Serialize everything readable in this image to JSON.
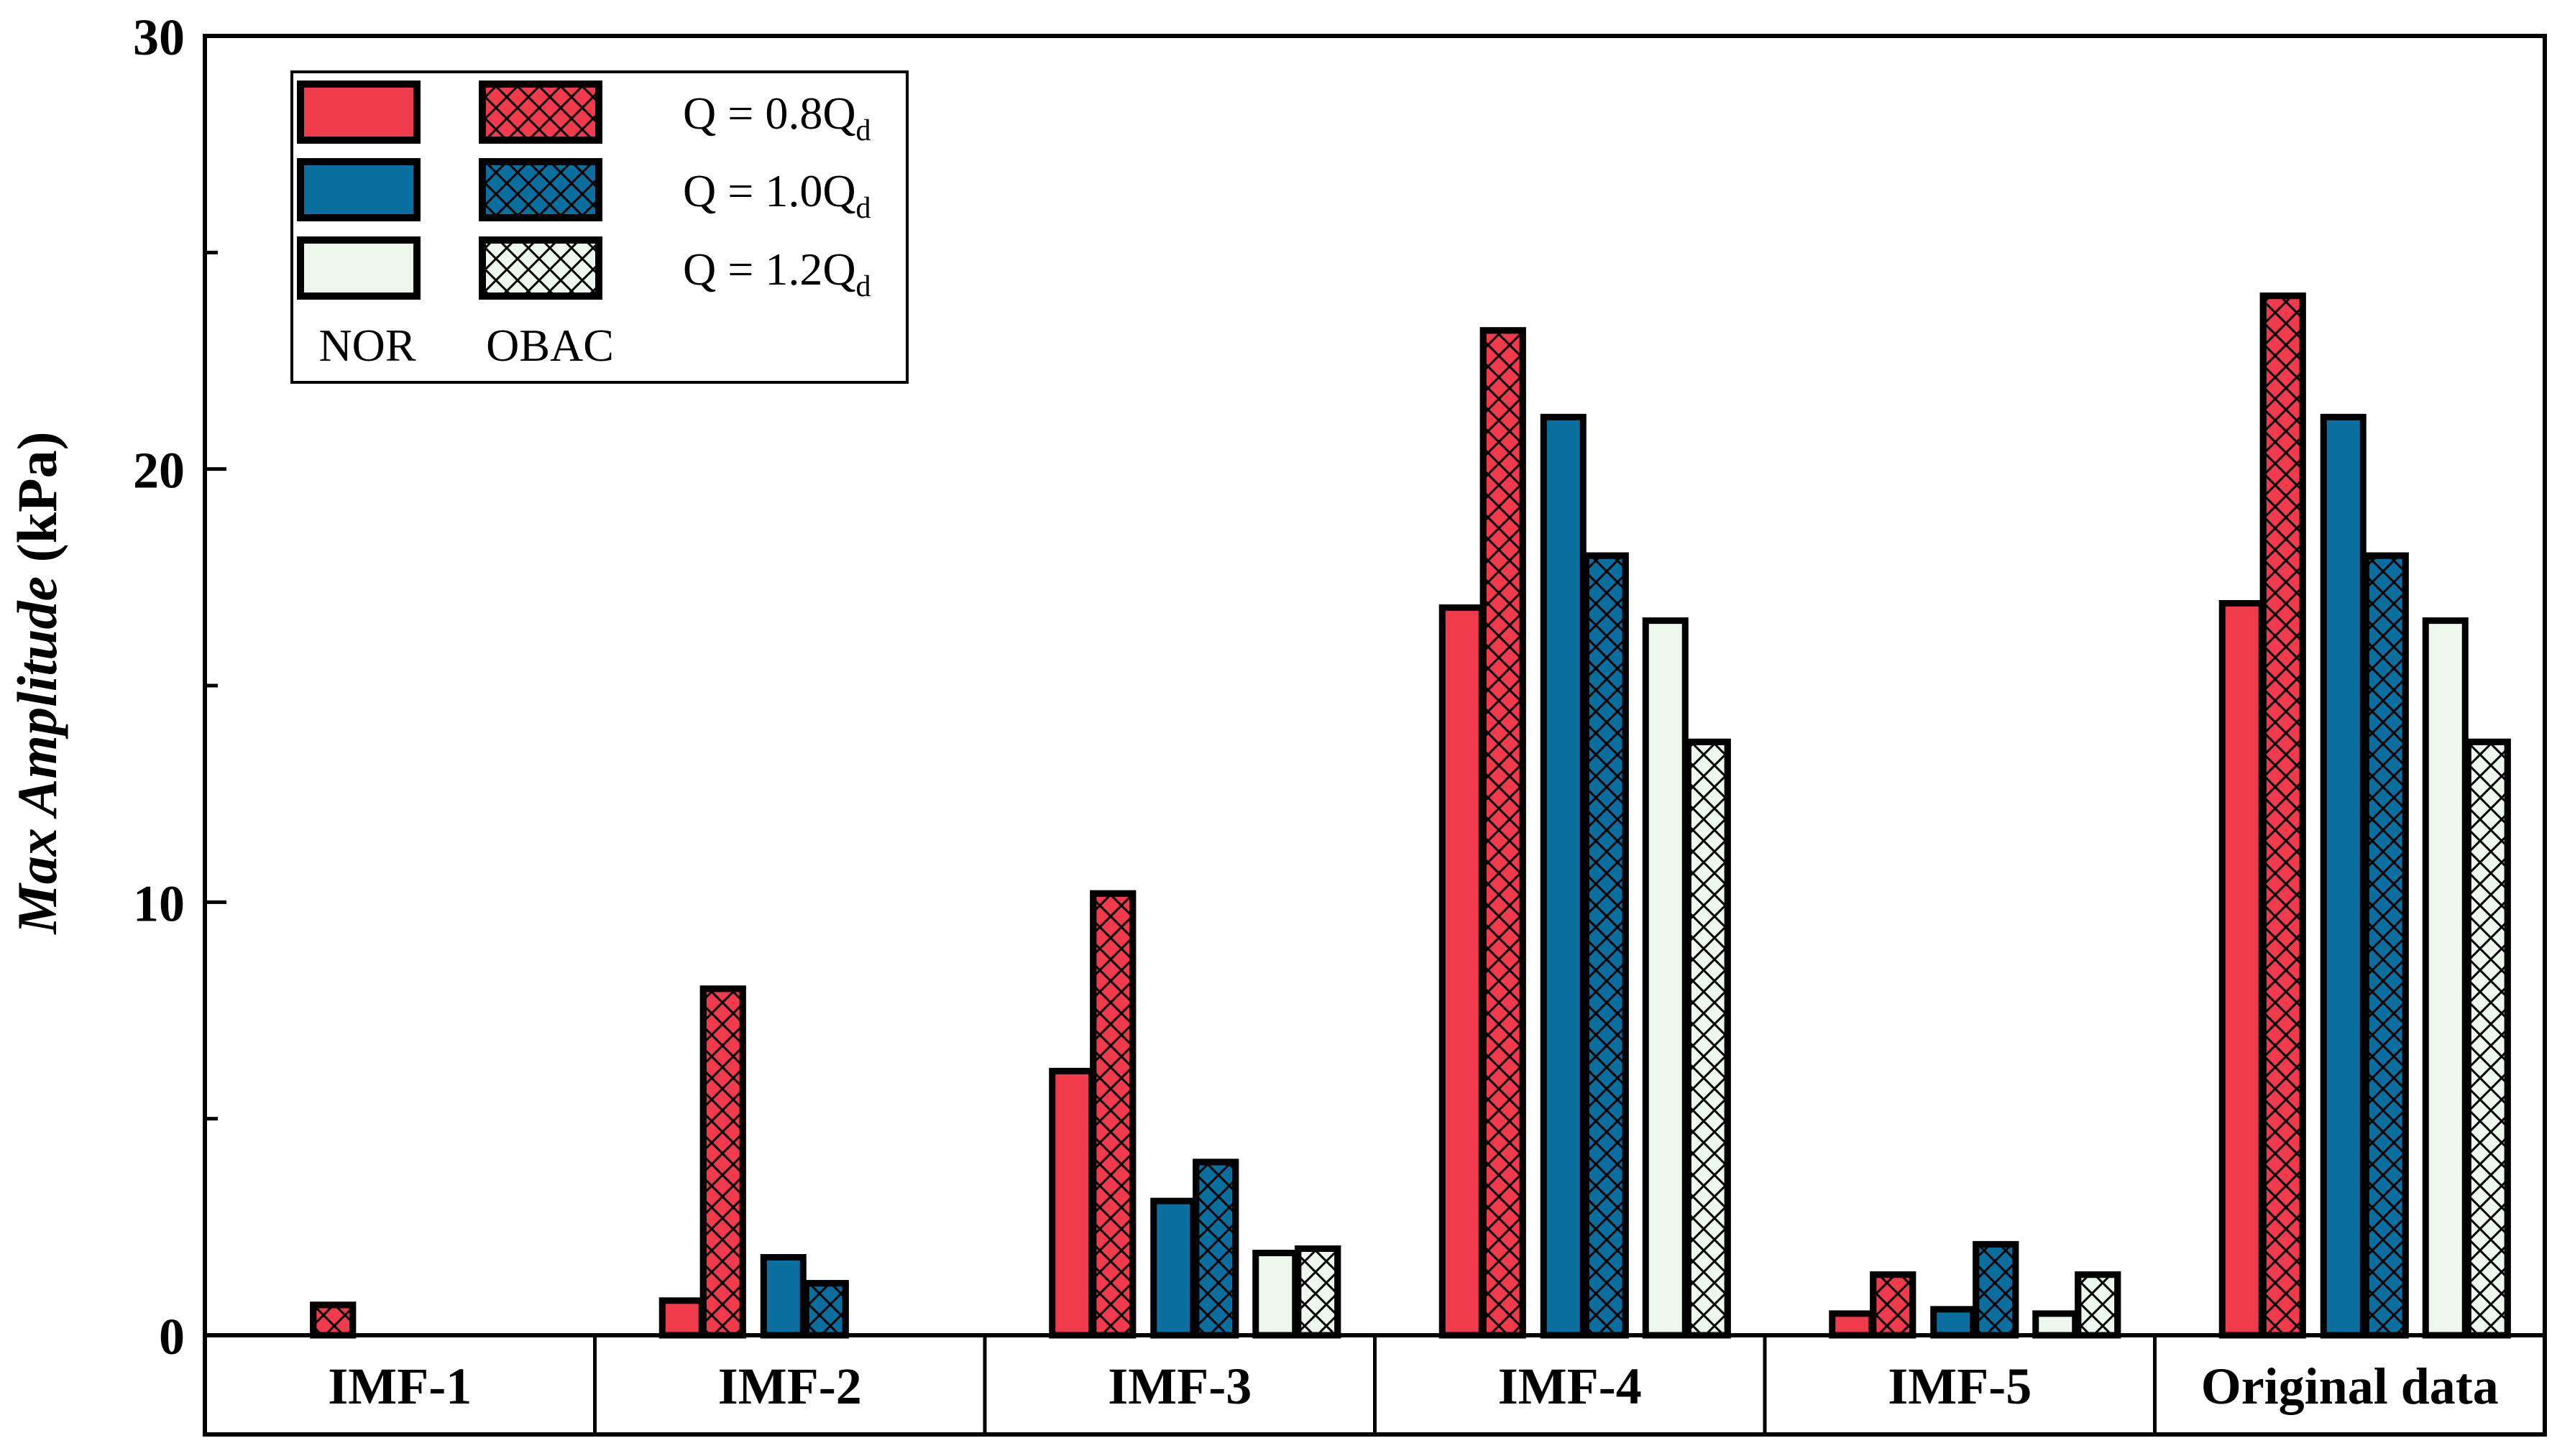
{
  "chart_data": {
    "type": "bar",
    "ylabel_italic": "Max Amplitude",
    "ylabel_unit": " (kPa)",
    "ylim": [
      0,
      30
    ],
    "yticks": [
      0,
      10,
      20,
      30
    ],
    "grid": false,
    "categories": [
      "IMF-1",
      "IMF-2",
      "IMF-3",
      "IMF-4",
      "IMF-5",
      "Original data"
    ],
    "series": [
      {
        "label": "NOR, Q = 0.8Qd",
        "method": "NOR",
        "flow": "Q = 0.8Qd",
        "color": "#F23A4D",
        "hatch": false,
        "values": [
          0.0,
          0.8,
          6.1,
          16.8,
          0.5,
          16.9
        ]
      },
      {
        "label": "OBAC, Q = 0.8Qd",
        "method": "OBAC",
        "flow": "Q = 0.8Qd",
        "color": "#F23A4D",
        "hatch": true,
        "values": [
          0.7,
          8.0,
          10.2,
          23.2,
          1.4,
          24.0
        ]
      },
      {
        "label": "NOR, Q = 1.0Qd",
        "method": "NOR",
        "flow": "Q = 1.0Qd",
        "color": "#0A6F9E",
        "hatch": false,
        "values": [
          0.0,
          1.8,
          3.1,
          21.2,
          0.6,
          21.2
        ]
      },
      {
        "label": "OBAC, Q = 1.0Qd",
        "method": "OBAC",
        "flow": "Q = 1.0Qd",
        "color": "#0A6F9E",
        "hatch": true,
        "values": [
          0.0,
          1.2,
          4.0,
          18.0,
          2.1,
          18.0
        ]
      },
      {
        "label": "NOR, Q = 1.2Qd",
        "method": "NOR",
        "flow": "Q = 1.2Qd",
        "color": "#EEF7EE",
        "hatch": false,
        "values": [
          0.0,
          0.0,
          1.9,
          16.5,
          0.5,
          16.5
        ]
      },
      {
        "label": "OBAC, Q = 1.2Qd",
        "method": "OBAC",
        "flow": "Q = 1.2Qd",
        "color": "#EEF7EE",
        "hatch": true,
        "values": [
          0.0,
          0.0,
          2.0,
          13.7,
          1.4,
          13.7
        ]
      }
    ],
    "legend": {
      "placement": "top-left",
      "rows": [
        {
          "prefix": "Q = ",
          "main": "0.8Q",
          "sub": "d",
          "color": "#F23A4D"
        },
        {
          "prefix": "Q = ",
          "main": "1.0Q",
          "sub": "d",
          "color": "#0A6F9E"
        },
        {
          "prefix": "Q = ",
          "main": "1.2Q",
          "sub": "d",
          "color": "#EEF7EE"
        }
      ],
      "column_labels": [
        "NOR",
        "OBAC"
      ]
    }
  }
}
